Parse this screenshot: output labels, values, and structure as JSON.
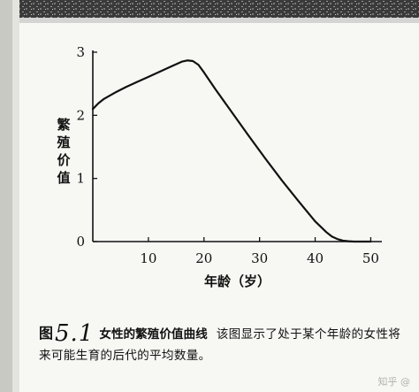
{
  "chart_data": {
    "type": "line",
    "x": [
      0,
      1,
      2,
      4,
      6,
      8,
      10,
      12,
      14,
      16,
      17,
      18,
      19,
      20,
      22,
      25,
      28,
      31,
      34,
      37,
      40,
      42,
      43,
      44,
      45,
      46,
      47,
      48,
      49,
      50
    ],
    "series": [
      {
        "values": [
          2.1,
          2.19,
          2.26,
          2.36,
          2.45,
          2.53,
          2.61,
          2.69,
          2.77,
          2.85,
          2.87,
          2.86,
          2.8,
          2.68,
          2.42,
          2.05,
          1.68,
          1.32,
          0.97,
          0.64,
          0.32,
          0.15,
          0.08,
          0.04,
          0.015,
          0.005,
          0.0,
          0.0,
          0.0,
          0.0
        ]
      }
    ],
    "ylabel": "繁殖价值",
    "xlabel": "年龄（岁）",
    "xlim": [
      0,
      52
    ],
    "ylim": [
      0,
      3
    ],
    "x_ticks": [
      10,
      20,
      30,
      40,
      50
    ],
    "y_ticks": [
      0,
      1,
      2,
      3
    ],
    "x_tick_labels": [
      "10",
      "20",
      "30",
      "40",
      "50"
    ],
    "y_tick_labels": [
      "0",
      "1",
      "2",
      "3"
    ],
    "grid": false,
    "legend": "none"
  },
  "caption": {
    "fig_prefix": "图",
    "fig_number": "5.1",
    "fig_title": "女性的繁殖价值曲线",
    "text": "该图显示了处于某个年龄的女性将来可能生育的后代的平均数量。"
  },
  "watermark": "知乎 @"
}
